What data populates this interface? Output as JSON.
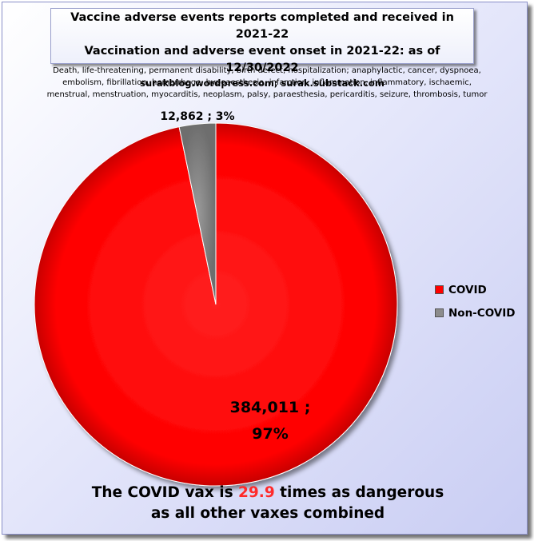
{
  "title": {
    "line1": "Vaccine adverse events reports completed and received in 2021-22",
    "line2": "Vaccination and adverse event onset in 2021-22: as of 12/30/2022",
    "line3": "surakblog.wordpress.com; surak.substack.com"
  },
  "terms": {
    "line1": "Death, life-threatening, permanent disability, birth defect, hospitalization; anaphylactic,  cancer, dyspnoea,",
    "line2": "embolism, fibrillation,  hemorrhage, hypoaesthesia,  infarction,  inflammation, inflammatory,  ischaemic,",
    "line3": "menstrual, menstruation, myocarditis, neoplasm, palsy, paraesthesia, pericarditis, seizure, thrombosis, tumor"
  },
  "chart_data": {
    "type": "pie",
    "slices": [
      {
        "name": "COVID",
        "value": 384011,
        "percent": 97,
        "color": "#ff0000",
        "label_line1": "384,011 ;",
        "label_line2": "97%"
      },
      {
        "name": "Non-COVID",
        "value": 12862,
        "percent": 3,
        "color": "#8c8c8c",
        "label_line1": "12,862 ; 3%"
      }
    ],
    "legend_position": "right"
  },
  "legend": {
    "covid": "COVID",
    "noncovid": "Non-COVID"
  },
  "footer": {
    "line1_prefix": "The COVID vax is ",
    "line1_value": "29.9",
    "line1_suffix": " times as dangerous",
    "line2": "as all other vaxes combined"
  }
}
